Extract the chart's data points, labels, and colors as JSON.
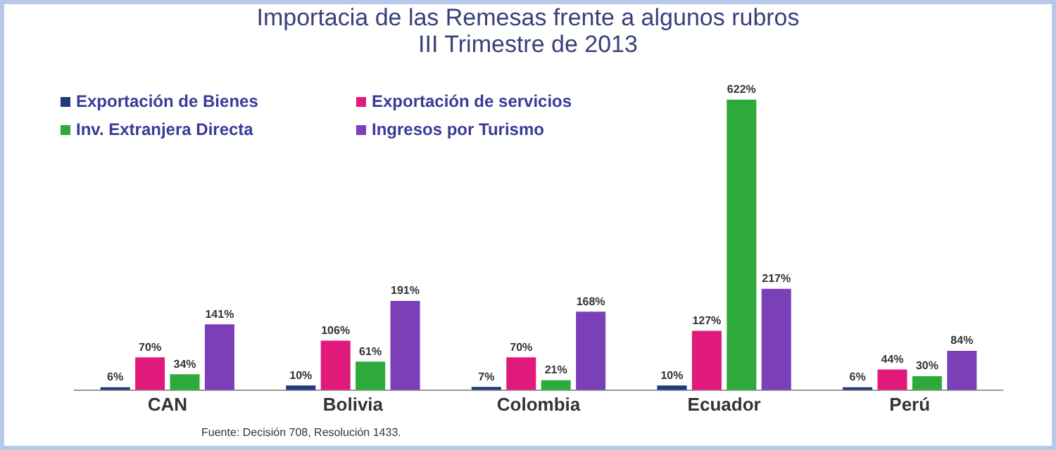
{
  "chart_data": {
    "type": "bar",
    "title": "Importacia de las Remesas frente a algunos rubros",
    "subtitle": "III Trimestre de 2013",
    "categories": [
      "CAN",
      "Bolivia",
      "Colombia",
      "Ecuador",
      "Perú"
    ],
    "series": [
      {
        "name": "Exportación de Bienes",
        "color": "#1f3a7a",
        "values": [
          6,
          10,
          7,
          10,
          6
        ],
        "value_labels": [
          "6%",
          "10%",
          "7%",
          "10%",
          "6%"
        ]
      },
      {
        "name": "Exportación de servicios",
        "color": "#e0197a",
        "values": [
          70,
          106,
          70,
          127,
          44
        ],
        "value_labels": [
          "70%",
          "106%",
          "70%",
          "127%",
          "44%"
        ]
      },
      {
        "name": "Inv. Extranjera Directa",
        "color": "#2eaa3a",
        "values": [
          34,
          61,
          21,
          622,
          30
        ],
        "value_labels": [
          "34%",
          "61%",
          "21%",
          "622%",
          "30%"
        ]
      },
      {
        "name": "Ingresos por Turismo",
        "color": "#7b3fb8",
        "values": [
          141,
          191,
          168,
          217,
          84
        ],
        "value_labels": [
          "141%",
          "191%",
          "168%",
          "217%",
          "84%"
        ]
      }
    ],
    "legend": "top left",
    "grid": false,
    "annotations": [
      "Fuente: Decisión 708, Resolución 1433."
    ]
  }
}
